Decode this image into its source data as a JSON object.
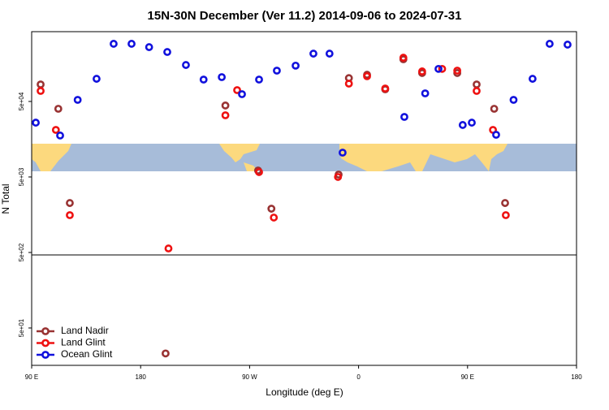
{
  "chart_data": {
    "type": "scatter",
    "title": "15N-30N December (Ver 11.2)   2014-09-06 to 2024-07-31",
    "x_label": "Longitude (deg E)",
    "y_label": "N Total",
    "log_y": true,
    "legend": "bottom-left",
    "xlim": [
      90,
      540
    ],
    "xticks": [
      {
        "value": 90,
        "label": "90 E"
      },
      {
        "value": 180,
        "label": "180"
      },
      {
        "value": 270,
        "label": "90 W"
      },
      {
        "value": 360,
        "label": "0"
      },
      {
        "value": 450,
        "label": "90 E"
      },
      {
        "value": 540,
        "label": "180"
      }
    ],
    "ylim": [
      16,
      420000
    ],
    "yticks": [
      {
        "value": 50,
        "label": "5e+01"
      },
      {
        "value": 500,
        "label": "5e+02"
      },
      {
        "value": 5000,
        "label": "5e+03"
      },
      {
        "value": 50000,
        "label": "5e+04"
      }
    ],
    "series": [
      {
        "name": "Land Nadir",
        "color": "#993333",
        "x": [
          97.4,
          112,
          121.5,
          250,
          277,
          288,
          343.5,
          352,
          367,
          382,
          397,
          412.5,
          441.5,
          457.5,
          472,
          481,
          200.6
        ],
        "values": [
          84000,
          40000,
          2260,
          44200,
          6090,
          1900,
          5380,
          102000,
          113000,
          72400,
          181000,
          119000,
          119000,
          84000,
          40000,
          2260,
          23
        ]
      },
      {
        "name": "Land Glint",
        "color": "#ee1111",
        "x": [
          97.4,
          110,
          121.5,
          203,
          250,
          259.7,
          277.8,
          290,
          343,
          352,
          367,
          382,
          397,
          412.5,
          429,
          441.5,
          457.5,
          471,
          481.6
        ],
        "values": [
          68900,
          21000,
          1560,
          565,
          32800,
          70600,
          5800,
          1450,
          5000,
          86100,
          108000,
          74300,
          190000,
          125000,
          135000,
          128000,
          68900,
          21000,
          1560
        ]
      },
      {
        "name": "Ocean Glint",
        "color": "#1111dd",
        "x": [
          93.4,
          113.5,
          128,
          143.6,
          157.7,
          172.5,
          187,
          202,
          217.4,
          232,
          247,
          263.7,
          277.8,
          292.5,
          308,
          322.7,
          336,
          346.8,
          397.8,
          415,
          426,
          446,
          453.5,
          473.6,
          488,
          503.7,
          517.8,
          532.6
        ],
        "values": [
          26200,
          17700,
          52500,
          99800,
          290000,
          290000,
          262000,
          226000,
          152000,
          97500,
          105000,
          62400,
          97500,
          128000,
          149000,
          215000,
          215000,
          10500,
          31200,
          64000,
          135000,
          24400,
          26200,
          18100,
          52500,
          99800,
          290000,
          283000
        ]
      }
    ]
  }
}
